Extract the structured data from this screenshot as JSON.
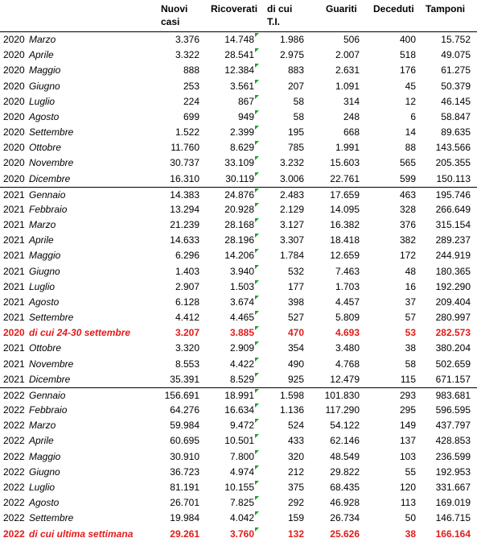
{
  "table": {
    "header": [
      "Nuovi casi",
      "Ricoverati",
      "di cui T.I.",
      "Guariti",
      "Deceduti",
      "Tamponi"
    ],
    "rows": [
      {
        "year": "2020",
        "label": "Marzo",
        "cells": [
          "3.376",
          "14.748",
          "1.986",
          "506",
          "400",
          "15.752"
        ]
      },
      {
        "year": "2020",
        "label": "Aprile",
        "cells": [
          "3.322",
          "28.541",
          "2.975",
          "2.007",
          "518",
          "49.075"
        ]
      },
      {
        "year": "2020",
        "label": "Maggio",
        "cells": [
          "888",
          "12.384",
          "883",
          "2.631",
          "176",
          "61.275"
        ]
      },
      {
        "year": "2020",
        "label": "Giugno",
        "cells": [
          "253",
          "3.561",
          "207",
          "1.091",
          "45",
          "50.379"
        ]
      },
      {
        "year": "2020",
        "label": "Luglio",
        "cells": [
          "224",
          "867",
          "58",
          "314",
          "12",
          "46.145"
        ]
      },
      {
        "year": "2020",
        "label": "Agosto",
        "cells": [
          "699",
          "949",
          "58",
          "248",
          "6",
          "58.847"
        ]
      },
      {
        "year": "2020",
        "label": "Settembre",
        "cells": [
          "1.522",
          "2.399",
          "195",
          "668",
          "14",
          "89.635"
        ]
      },
      {
        "year": "2020",
        "label": "Ottobre",
        "cells": [
          "11.760",
          "8.629",
          "785",
          "1.991",
          "88",
          "143.566"
        ]
      },
      {
        "year": "2020",
        "label": "Novembre",
        "cells": [
          "30.737",
          "33.109",
          "3.232",
          "15.603",
          "565",
          "205.355"
        ]
      },
      {
        "year": "2020",
        "label": "Dicembre",
        "cells": [
          "16.310",
          "30.119",
          "3.006",
          "22.761",
          "599",
          "150.113"
        ]
      },
      {
        "year": "2021",
        "label": "Gennaio",
        "cells": [
          "14.383",
          "24.876",
          "2.483",
          "17.659",
          "463",
          "195.746"
        ]
      },
      {
        "year": "2021",
        "label": "Febbraio",
        "cells": [
          "13.294",
          "20.928",
          "2.129",
          "14.095",
          "328",
          "266.649"
        ]
      },
      {
        "year": "2021",
        "label": "Marzo",
        "cells": [
          "21.239",
          "28.168",
          "3.127",
          "16.382",
          "376",
          "315.154"
        ]
      },
      {
        "year": "2021",
        "label": "Aprile",
        "cells": [
          "14.633",
          "28.196",
          "3.307",
          "18.418",
          "382",
          "289.237"
        ]
      },
      {
        "year": "2021",
        "label": "Maggio",
        "cells": [
          "6.296",
          "14.206",
          "1.784",
          "12.659",
          "172",
          "244.919"
        ]
      },
      {
        "year": "2021",
        "label": "Giugno",
        "cells": [
          "1.403",
          "3.940",
          "532",
          "7.463",
          "48",
          "180.365"
        ]
      },
      {
        "year": "2021",
        "label": "Luglio",
        "cells": [
          "2.907",
          "1.503",
          "177",
          "1.703",
          "16",
          "192.290"
        ]
      },
      {
        "year": "2021",
        "label": "Agosto",
        "cells": [
          "6.128",
          "3.674",
          "398",
          "4.457",
          "37",
          "209.404"
        ]
      },
      {
        "year": "2021",
        "label": "Settembre",
        "cells": [
          "4.412",
          "4.465",
          "527",
          "5.809",
          "57",
          "280.997"
        ]
      },
      {
        "year": "2020",
        "label": "di cui 24-30 settembre",
        "cells": [
          "3.207",
          "3.885",
          "470",
          "4.693",
          "53",
          "282.573"
        ],
        "highlight": true
      },
      {
        "year": "2021",
        "label": "Ottobre",
        "cells": [
          "3.320",
          "2.909",
          "354",
          "3.480",
          "38",
          "380.204"
        ]
      },
      {
        "year": "2021",
        "label": "Novembre",
        "cells": [
          "8.553",
          "4.422",
          "490",
          "4.768",
          "58",
          "502.659"
        ]
      },
      {
        "year": "2021",
        "label": "Dicembre",
        "cells": [
          "35.391",
          "8.529",
          "925",
          "12.479",
          "115",
          "671.157"
        ]
      },
      {
        "year": "2022",
        "label": "Gennaio",
        "cells": [
          "156.691",
          "18.991",
          "1.598",
          "101.830",
          "293",
          "983.681"
        ]
      },
      {
        "year": "2022",
        "label": "Febbraio",
        "cells": [
          "64.276",
          "16.634",
          "1.136",
          "117.290",
          "295",
          "596.595"
        ]
      },
      {
        "year": "2022",
        "label": "Marzo",
        "cells": [
          "59.984",
          "9.472",
          "524",
          "54.122",
          "149",
          "437.797"
        ]
      },
      {
        "year": "2022",
        "label": "Aprile",
        "cells": [
          "60.695",
          "10.501",
          "433",
          "62.146",
          "137",
          "428.853"
        ]
      },
      {
        "year": "2022",
        "label": "Maggio",
        "cells": [
          "30.910",
          "7.800",
          "320",
          "48.549",
          "103",
          "236.599"
        ]
      },
      {
        "year": "2022",
        "label": "Giugno",
        "cells": [
          "36.723",
          "4.974",
          "212",
          "29.822",
          "55",
          "192.953"
        ]
      },
      {
        "year": "2022",
        "label": "Luglio",
        "cells": [
          "81.191",
          "10.155",
          "375",
          "68.435",
          "120",
          "331.667"
        ]
      },
      {
        "year": "2022",
        "label": "Agosto",
        "cells": [
          "26.701",
          "7.825",
          "292",
          "46.928",
          "113",
          "169.019"
        ]
      },
      {
        "year": "2022",
        "label": "Settembre",
        "cells": [
          "19.984",
          "4.042",
          "159",
          "26.734",
          "50",
          "146.715"
        ]
      },
      {
        "year": "2022",
        "label": "di cui ultima settimana",
        "cells": [
          "29.261",
          "3.760",
          "132",
          "25.626",
          "38",
          "166.164"
        ],
        "highlight": true
      }
    ]
  }
}
